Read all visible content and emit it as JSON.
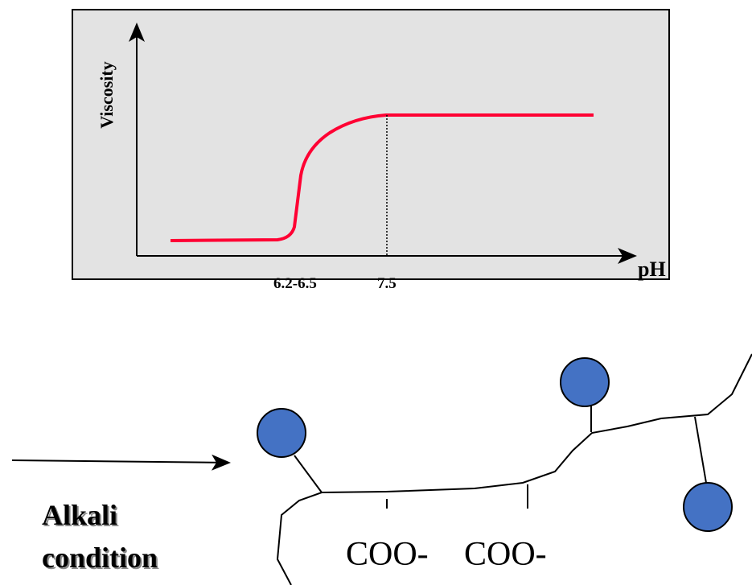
{
  "graph": {
    "y_axis_label": "Viscosity",
    "x_axis_label": "pH",
    "x_markers": [
      "6.2-6.5",
      "7.5"
    ]
  },
  "scheme": {
    "condition": [
      "Alkali",
      "condition"
    ],
    "groups": [
      "COO-",
      "COO-"
    ]
  }
}
